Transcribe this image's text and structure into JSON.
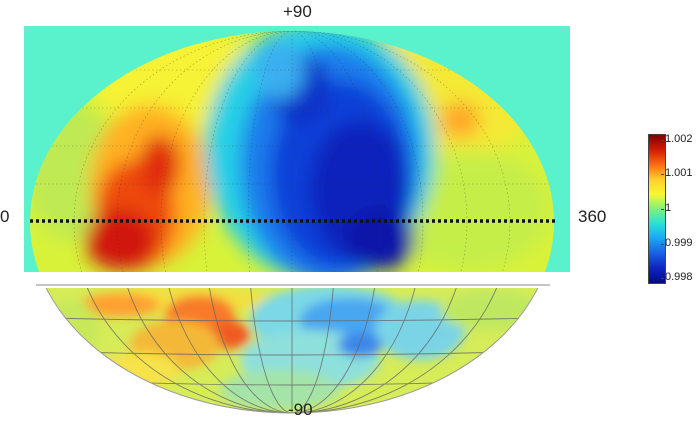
{
  "labels": {
    "top": "+90",
    "bottom": "-90",
    "left": "0",
    "right": "360"
  },
  "colorbar": {
    "ticks": [
      "1.002",
      "1.001",
      "1",
      "0.999",
      "0.998"
    ],
    "min": 0.998,
    "max": 1.002,
    "colors": [
      "#7f0000",
      "#d21a06",
      "#ff6a10",
      "#ffcf2a",
      "#f8f830",
      "#7ef07c",
      "#26e2d6",
      "#19a6f2",
      "#1a5ee6",
      "#0d24c0",
      "#020a8c"
    ]
  },
  "map": {
    "upper_background": "#5af2cc",
    "equator_line": "dotted",
    "projection": "mollweide"
  }
}
